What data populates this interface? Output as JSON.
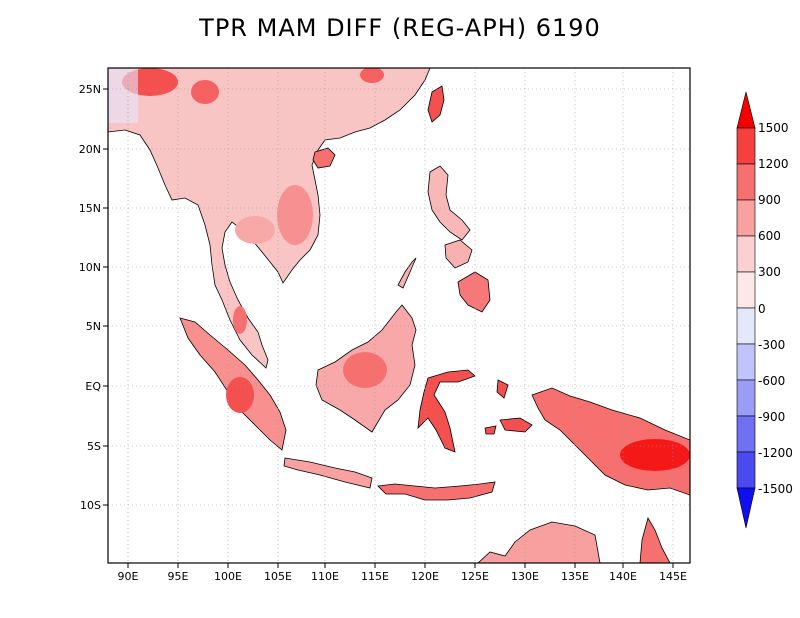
{
  "title": "TPR MAM DIFF (REG-APH) 6190",
  "map": {
    "lon_labels": [
      "90E",
      "95E",
      "100E",
      "105E",
      "110E",
      "115E",
      "120E",
      "125E",
      "130E",
      "135E",
      "140E",
      "145E"
    ],
    "lat_labels": [
      "25N",
      "20N",
      "15N",
      "10N",
      "5N",
      "EQ",
      "5S",
      "10S"
    ],
    "grid": "dotted"
  },
  "colorbar": {
    "labels": [
      "1500",
      "1200",
      "900",
      "600",
      "300",
      "0",
      "-300",
      "-600",
      "-900",
      "-1200",
      "-1500"
    ],
    "colors": [
      "#f40000",
      "#f54040",
      "#f77070",
      "#f9a0a0",
      "#fbd0d0",
      "#fde8e8",
      "#e4e8fb",
      "#c0c4fa",
      "#9a9cf6",
      "#6f70f2",
      "#4a4af0",
      "#1010ee"
    ]
  }
}
